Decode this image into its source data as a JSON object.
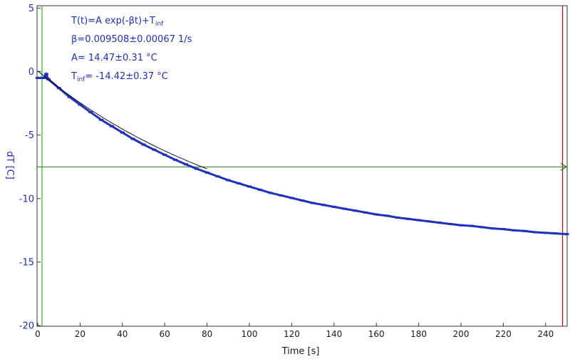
{
  "chart_data": {
    "type": "scatter",
    "xlabel": "Time [s]",
    "ylabel": "dT [C]",
    "xlim": [
      0,
      250
    ],
    "ylim": [
      -20,
      5
    ],
    "xticks": [
      0,
      20,
      40,
      60,
      80,
      100,
      120,
      140,
      160,
      180,
      200,
      220,
      240
    ],
    "yticks": [
      5,
      0,
      -5,
      -10,
      -15,
      -20
    ],
    "grid": false,
    "fit": {
      "model": "T(t)=A exp(-βt)+T_inf",
      "A": 14.47,
      "beta": 0.009508,
      "T_inf": -14.42
    },
    "series": [
      {
        "x": [
          0,
          1,
          2,
          3,
          4,
          5,
          10,
          15,
          20,
          25,
          30,
          35,
          40,
          45,
          50,
          55,
          60,
          65,
          70,
          75,
          80,
          85,
          90,
          95,
          100,
          105,
          110,
          115,
          120,
          125,
          130,
          135,
          140,
          145,
          150,
          155,
          160,
          165,
          170,
          175,
          180,
          185,
          190,
          195,
          200,
          205,
          210,
          215,
          220,
          225,
          230,
          235,
          240,
          245,
          250
        ],
        "y": [
          -0.5,
          -0.5,
          -0.5,
          -0.5,
          -0.2,
          -0.6,
          -1.3,
          -2.0,
          -2.6,
          -3.2,
          -3.8,
          -4.3,
          -4.8,
          -5.3,
          -5.75,
          -6.15,
          -6.55,
          -6.95,
          -7.3,
          -7.65,
          -7.95,
          -8.25,
          -8.55,
          -8.8,
          -9.05,
          -9.3,
          -9.55,
          -9.75,
          -9.95,
          -10.15,
          -10.35,
          -10.5,
          -10.65,
          -10.8,
          -10.95,
          -11.1,
          -11.25,
          -11.35,
          -11.5,
          -11.6,
          -11.7,
          -11.8,
          -11.9,
          -12.0,
          -12.1,
          -12.15,
          -12.25,
          -12.35,
          -12.4,
          -12.5,
          -12.55,
          -12.65,
          -12.7,
          -12.75,
          -12.8
        ]
      }
    ],
    "markers": {
      "vertical_green_x": 2,
      "vertical_red_x": 248,
      "horizontal_green_y": -7.5
    }
  },
  "annotations": {
    "line1_main": "T(t)=A exp(-βt)+T",
    "line1_sub": "inf",
    "line2": "β=0.009508±0.00067 1/s",
    "line3": "A= 14.47±0.31 °C",
    "line4_lead": "T",
    "line4_sub": "inf",
    "line4_rest": "= -14.42±0.37 °C"
  },
  "colors": {
    "data": "#1f2fbf",
    "fit": "#000000",
    "green": "#2bb52b",
    "green_dark": "#1a7a1a",
    "red": "#b01010",
    "axis_text_y": "#1f2fbf"
  }
}
